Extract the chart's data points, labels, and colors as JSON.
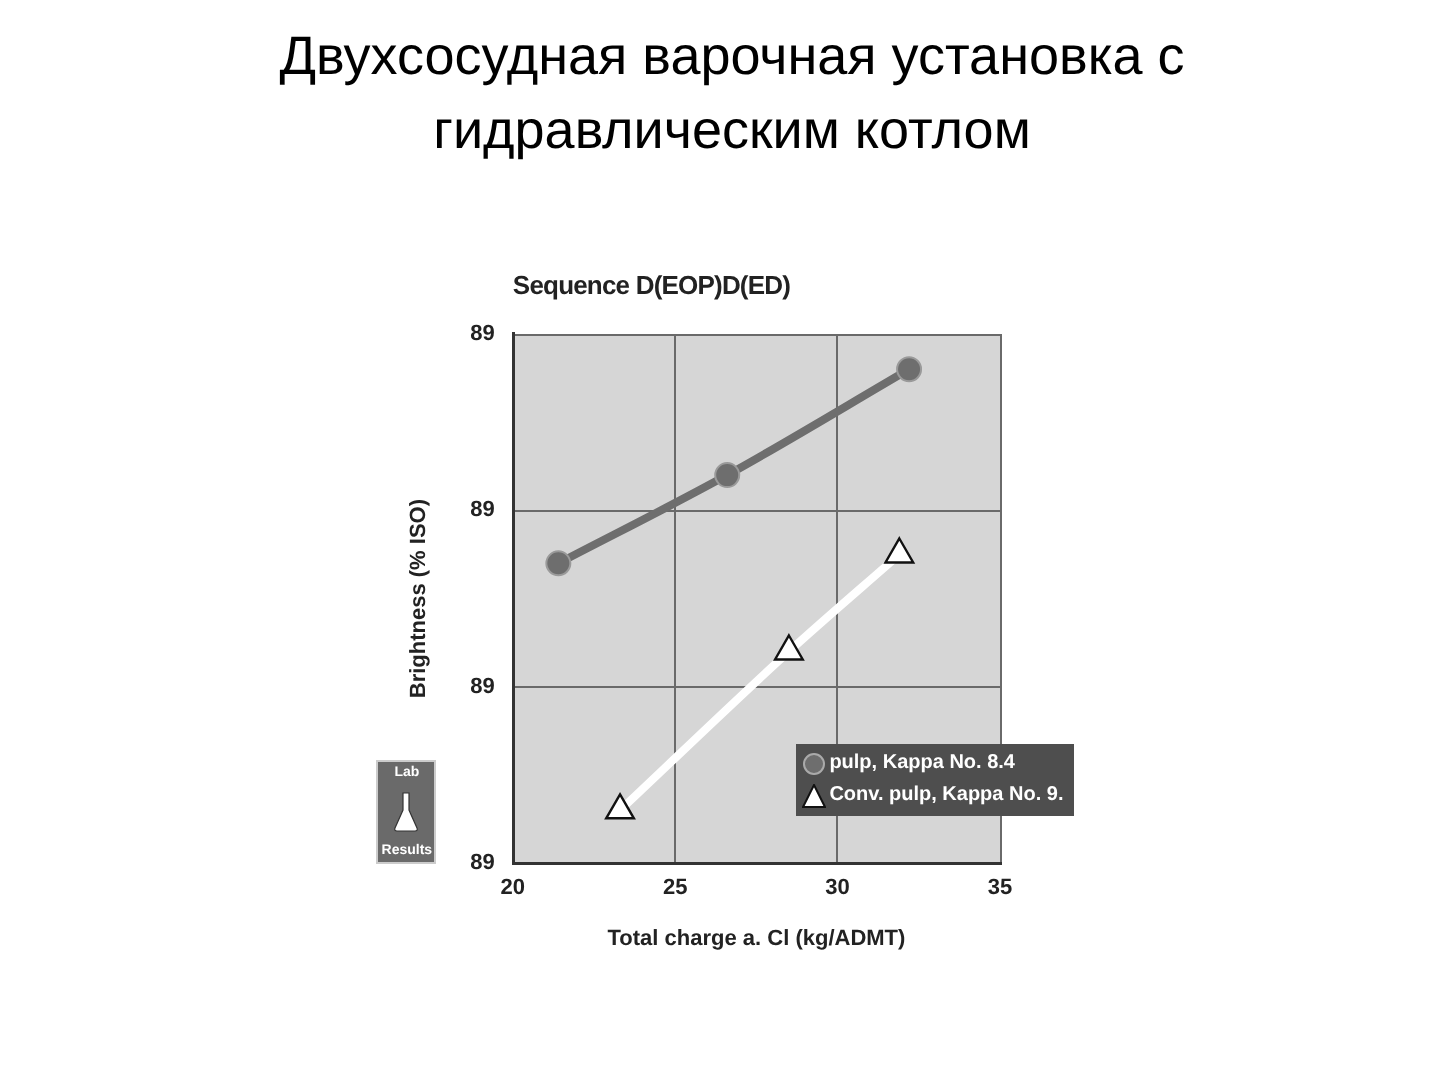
{
  "chart_data": {
    "type": "line",
    "title": "Двухсосудная варочная установка с гидравлическим котлом",
    "subtitle": "Sequence D(EOP)D(ED)",
    "xlabel": "Total charge a. Cl (kg/ADMT)",
    "ylabel": "Brightness (% ISO)",
    "annotations": [
      "Lab",
      "Results"
    ],
    "xlim": [
      20,
      35
    ],
    "xticks": [
      20,
      25,
      30,
      35
    ],
    "ylim": [
      88.6,
      89.2
    ],
    "yticks": [
      {
        "value": 88.6,
        "label": "89"
      },
      {
        "value": 88.8,
        "label": "89"
      },
      {
        "value": 89.0,
        "label": "89"
      },
      {
        "value": 89.2,
        "label": "89"
      }
    ],
    "grid": true,
    "legend": "bottom right",
    "line_style": "solid",
    "series": [
      {
        "name": "pulp, Kappa No. 8.4",
        "color": "#6e6e6e",
        "marker": "circle",
        "x": [
          21.4,
          26.6,
          32.2
        ],
        "values": [
          88.94,
          89.04,
          89.16
        ]
      },
      {
        "name": "Conv. pulp, Kappa No. 9.",
        "color": "#ffffff",
        "marker": "triangle",
        "x": [
          23.3,
          28.5,
          31.9
        ],
        "values": [
          88.66,
          88.84,
          88.95
        ]
      }
    ]
  }
}
